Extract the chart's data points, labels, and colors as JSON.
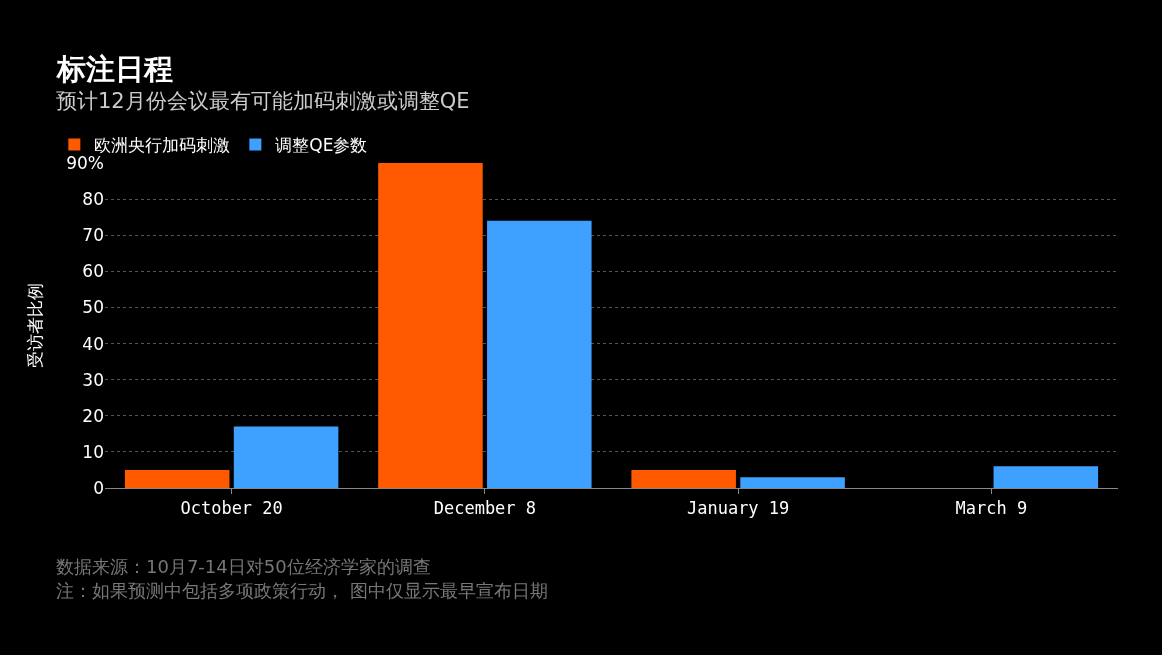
{
  "chart_data": {
    "type": "bar",
    "title": "标注日程",
    "subtitle": "预计12月份会议最有可能加码刺激或调整QE",
    "ylabel": "受访者比例",
    "categories": [
      "October 20",
      "December 8",
      "January 19",
      "March 9"
    ],
    "series": [
      {
        "name": "欧洲央行加码刺激",
        "color": "#ff5a00",
        "values": [
          5,
          90,
          5,
          0
        ]
      },
      {
        "name": "调整QE参数",
        "color": "#3ea0ff",
        "values": [
          17,
          74,
          3,
          6
        ]
      }
    ],
    "ylim": [
      0,
      90
    ],
    "yticks": [
      0,
      10,
      20,
      30,
      40,
      50,
      60,
      70,
      80,
      {
        "value": 90,
        "label": "90%"
      }
    ],
    "grid": "y",
    "legend": "top left",
    "annotations": [
      "数据来源：10月7-14日对50位经济学家的调查",
      "注：如果预测中包括多项政策行动， 图中仅显示最早宣布日期"
    ]
  }
}
